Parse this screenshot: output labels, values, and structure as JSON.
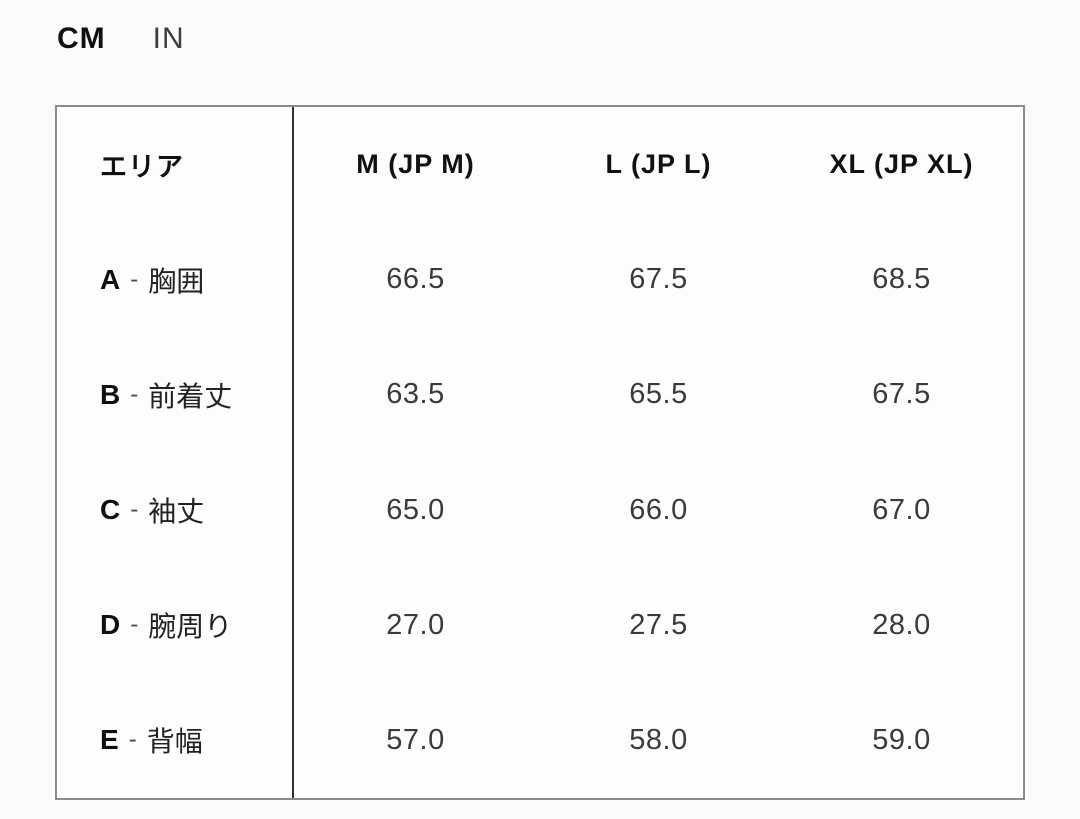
{
  "units": {
    "cm": "CM",
    "in": "IN",
    "selected": "CM"
  },
  "table": {
    "separator": "-",
    "header": {
      "area": "エリア",
      "sizes": [
        "M (JP M)",
        "L (JP L)",
        "XL (JP XL)"
      ]
    },
    "rows": [
      {
        "letter": "A",
        "label": "胸囲",
        "values": [
          "66.5",
          "67.5",
          "68.5"
        ]
      },
      {
        "letter": "B",
        "label": "前着丈",
        "values": [
          "63.5",
          "65.5",
          "67.5"
        ]
      },
      {
        "letter": "C",
        "label": "袖丈",
        "values": [
          "65.0",
          "66.0",
          "67.0"
        ]
      },
      {
        "letter": "D",
        "label": "腕周り",
        "values": [
          "27.0",
          "27.5",
          "28.0"
        ]
      },
      {
        "letter": "E",
        "label": "背幅",
        "values": [
          "57.0",
          "58.0",
          "59.0"
        ]
      }
    ]
  },
  "colors": {
    "background": "#fbfbfb",
    "table_border": "#8a8a8a",
    "column_divider": "#2e2e2e",
    "heading_text": "#111111",
    "value_text": "#3a3a3a"
  }
}
